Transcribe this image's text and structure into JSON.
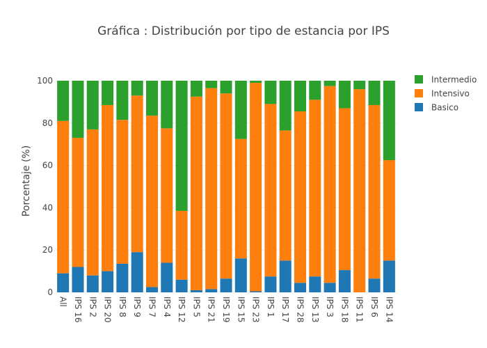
{
  "chart_data": {
    "type": "bar",
    "stacked": true,
    "title": "Gráfica : Distribución por tipo de estancia por IPS",
    "xlabel": "",
    "ylabel": "Porcentaje (%)",
    "ylim": [
      0,
      100
    ],
    "yticks": [
      0,
      20,
      40,
      60,
      80,
      100
    ],
    "grid": true,
    "legend_position": "top-right",
    "categories": [
      "All",
      "IPS 16",
      "IPS 2",
      "IPS 20",
      "IPS 8",
      "IPS 9",
      "IPS 7",
      "IPS 4",
      "IPS 12",
      "IPS 5",
      "IPS 21",
      "IPS 19",
      "IPS 15",
      "IPS 23",
      "IPS 1",
      "IPS 17",
      "IPS 28",
      "IPS 13",
      "IPS 3",
      "IPS 18",
      "IPS 11",
      "IPS 6",
      "IPS 14"
    ],
    "series": [
      {
        "name": "Basico",
        "color": "#1f77b4",
        "values": [
          9,
          12,
          8,
          10,
          13.5,
          19,
          2.5,
          14,
          6,
          1,
          1.5,
          6.5,
          16,
          0.5,
          7.5,
          15,
          4.5,
          7.5,
          4.5,
          10.5,
          0,
          6.5,
          15
        ]
      },
      {
        "name": "Intensivo",
        "color": "#ff7f0e",
        "values": [
          72,
          61,
          69,
          78.5,
          68,
          74,
          81,
          63.5,
          32.5,
          91.5,
          95,
          87.5,
          56.5,
          98.5,
          81.5,
          61.5,
          81,
          83.5,
          93,
          76.5,
          96,
          82,
          47.5
        ]
      },
      {
        "name": "Intermedio",
        "color": "#2ca02c",
        "values": [
          19,
          27,
          23,
          11.5,
          18.5,
          7,
          16.5,
          22.5,
          61.5,
          7.5,
          3.5,
          6,
          27.5,
          1,
          11,
          23.5,
          14.5,
          9,
          2.5,
          13,
          4,
          11.5,
          37.5
        ]
      }
    ],
    "legend_order": [
      "Intermedio",
      "Intensivo",
      "Basico"
    ]
  }
}
